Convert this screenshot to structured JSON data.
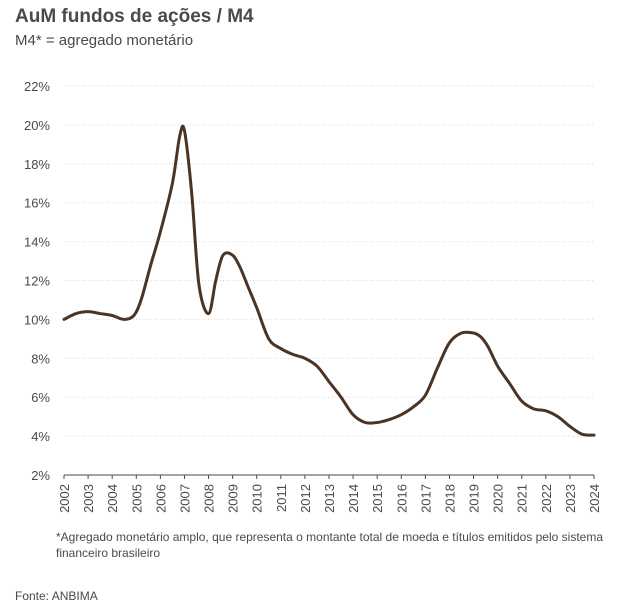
{
  "header": {
    "title": "AuM fundos de ações / M4",
    "subtitle": "M4* = agregado monetário"
  },
  "footnote": "*Agregado monetário amplo, que representa o montante total de moeda e títulos emitidos pelo sistema financeiro brasileiro",
  "source": "Fonte: ANBIMA",
  "colors": {
    "line": "#4a3425",
    "grid": "#d9d9d9",
    "axis": "#4a4a4a",
    "text": "#4a4a4a"
  },
  "chart_data": {
    "type": "line",
    "title": "AuM fundos de ações / M4",
    "subtitle": "M4* = agregado monetário",
    "xlabel": "",
    "ylabel": "",
    "x_ticks": [
      "2002",
      "2003",
      "2004",
      "2005",
      "2006",
      "2007",
      "2008",
      "2009",
      "2010",
      "2011",
      "2012",
      "2013",
      "2014",
      "2015",
      "2016",
      "2017",
      "2018",
      "2019",
      "2020",
      "2021",
      "2022",
      "2023",
      "2024"
    ],
    "y_ticks": [
      "2%",
      "4%",
      "6%",
      "8%",
      "10%",
      "12%",
      "14%",
      "16%",
      "18%",
      "20%",
      "22%"
    ],
    "ylim": [
      2,
      22
    ],
    "xlim": [
      2002,
      2024
    ],
    "grid": "horizontal",
    "legend": "none",
    "series": [
      {
        "x": [
          2002,
          2002.5,
          2003,
          2003.5,
          2004,
          2004.5,
          2004.9,
          2005.2,
          2005.6,
          2006,
          2006.5,
          2006.8,
          2007,
          2007.3,
          2007.6,
          2008,
          2008.3,
          2008.6,
          2009,
          2009.3,
          2009.6,
          2010,
          2010.5,
          2011,
          2011.5,
          2012,
          2012.5,
          2013,
          2013.5,
          2014,
          2014.5,
          2015,
          2015.5,
          2016,
          2016.5,
          2017,
          2017.5,
          2018,
          2018.5,
          2019,
          2019.3,
          2019.6,
          2020,
          2020.5,
          2021,
          2021.5,
          2022,
          2022.5,
          2023,
          2023.5,
          2024
        ],
        "values": [
          10.0,
          10.3,
          10.4,
          10.3,
          10.2,
          10.0,
          10.2,
          11.0,
          12.8,
          14.5,
          17.0,
          19.4,
          19.7,
          16.5,
          11.8,
          10.3,
          12.0,
          13.3,
          13.3,
          12.7,
          11.8,
          10.6,
          9.0,
          8.5,
          8.2,
          8.0,
          7.6,
          6.8,
          6.0,
          5.1,
          4.7,
          4.7,
          4.85,
          5.1,
          5.5,
          6.1,
          7.5,
          8.8,
          9.3,
          9.3,
          9.1,
          8.6,
          7.6,
          6.7,
          5.8,
          5.4,
          5.3,
          5.0,
          4.5,
          4.1,
          4.05
        ]
      }
    ]
  }
}
